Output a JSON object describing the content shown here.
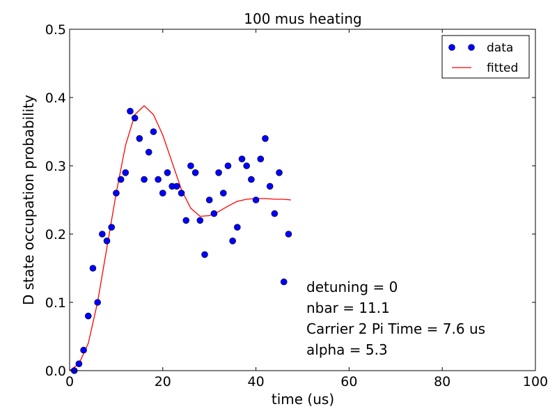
{
  "chart_data": {
    "type": "scatter",
    "title": "100 mus heating",
    "xlabel": "time (us)",
    "ylabel": "D state occupation probability",
    "xlim": [
      0,
      100
    ],
    "ylim": [
      0,
      0.5
    ],
    "xticks": [
      "0",
      "20",
      "40",
      "60",
      "80",
      "100"
    ],
    "yticks": [
      "0.0",
      "0.1",
      "0.2",
      "0.3",
      "0.4",
      "0.5"
    ],
    "grid": false,
    "legend_position": "top-right",
    "series": [
      {
        "name": "data",
        "kind": "points",
        "color": "#0000ff",
        "x": [
          1,
          2,
          3,
          4,
          5,
          6,
          7,
          8,
          9,
          10,
          11,
          12,
          13,
          14,
          15,
          16,
          17,
          18,
          19,
          20,
          21,
          22,
          23,
          24,
          25,
          26,
          27,
          28,
          29,
          30,
          31,
          32,
          33,
          34,
          35,
          36,
          37,
          38,
          39,
          40,
          41,
          42,
          43,
          44,
          45,
          46,
          47
        ],
        "y": [
          0.0,
          0.01,
          0.03,
          0.08,
          0.15,
          0.1,
          0.2,
          0.19,
          0.21,
          0.26,
          0.28,
          0.29,
          0.38,
          0.37,
          0.34,
          0.28,
          0.32,
          0.35,
          0.28,
          0.26,
          0.29,
          0.27,
          0.27,
          0.26,
          0.22,
          0.3,
          0.29,
          0.22,
          0.17,
          0.25,
          0.23,
          0.29,
          0.26,
          0.3,
          0.19,
          0.21,
          0.31,
          0.3,
          0.28,
          0.25,
          0.31,
          0.34,
          0.27,
          0.23,
          0.29,
          0.13,
          0.2
        ]
      },
      {
        "name": "fitted",
        "kind": "line",
        "color": "#ff0000",
        "x": [
          0,
          2,
          4,
          6,
          8,
          10,
          12,
          14,
          16,
          18,
          20,
          22,
          24,
          26,
          28,
          30,
          32,
          34,
          36,
          38,
          40,
          42,
          44,
          46,
          47.5
        ],
        "y": [
          0.0,
          0.01,
          0.04,
          0.1,
          0.18,
          0.26,
          0.33,
          0.375,
          0.388,
          0.375,
          0.345,
          0.305,
          0.265,
          0.238,
          0.226,
          0.227,
          0.233,
          0.241,
          0.248,
          0.251,
          0.252,
          0.252,
          0.251,
          0.251,
          0.25
        ]
      }
    ],
    "annotations": [
      "detuning = 0",
      "nbar = 11.1",
      "Carrier 2 Pi Time = 7.6 us",
      "alpha = 5.3"
    ]
  }
}
